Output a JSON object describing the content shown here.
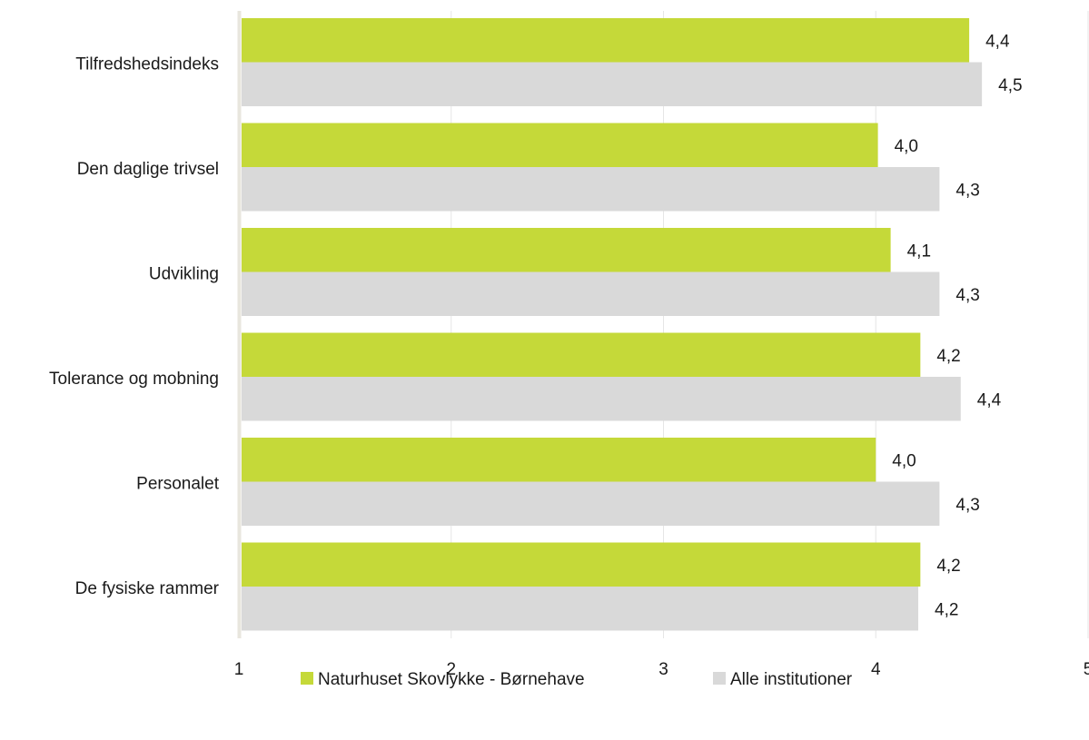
{
  "chart_data": {
    "type": "bar",
    "orientation": "horizontal",
    "categories": [
      "Tilfredshedsindeks",
      "Den daglige trivsel",
      "Udvikling",
      "Tolerance og mobning",
      "Personalet",
      "De fysiske rammer"
    ],
    "series": [
      {
        "name": "Naturhuset Skovlykke - Børnehave",
        "color": "#c5d939",
        "values": [
          4.44,
          4.01,
          4.07,
          4.21,
          4.0,
          4.21
        ],
        "labels": [
          "4,4",
          "4,0",
          "4,1",
          "4,2",
          "4,0",
          "4,2"
        ]
      },
      {
        "name": "Alle institutioner",
        "color": "#d9d9d9",
        "values": [
          4.5,
          4.3,
          4.3,
          4.4,
          4.3,
          4.2
        ],
        "labels": [
          "4,5",
          "4,3",
          "4,3",
          "4,4",
          "4,3",
          "4,2"
        ]
      }
    ],
    "xlim": [
      1,
      5
    ],
    "ticks": [
      1,
      2,
      3,
      4,
      5
    ],
    "tick_labels": [
      "1",
      "2",
      "3",
      "4",
      "5"
    ],
    "grid": true,
    "legend_position": "bottom"
  }
}
